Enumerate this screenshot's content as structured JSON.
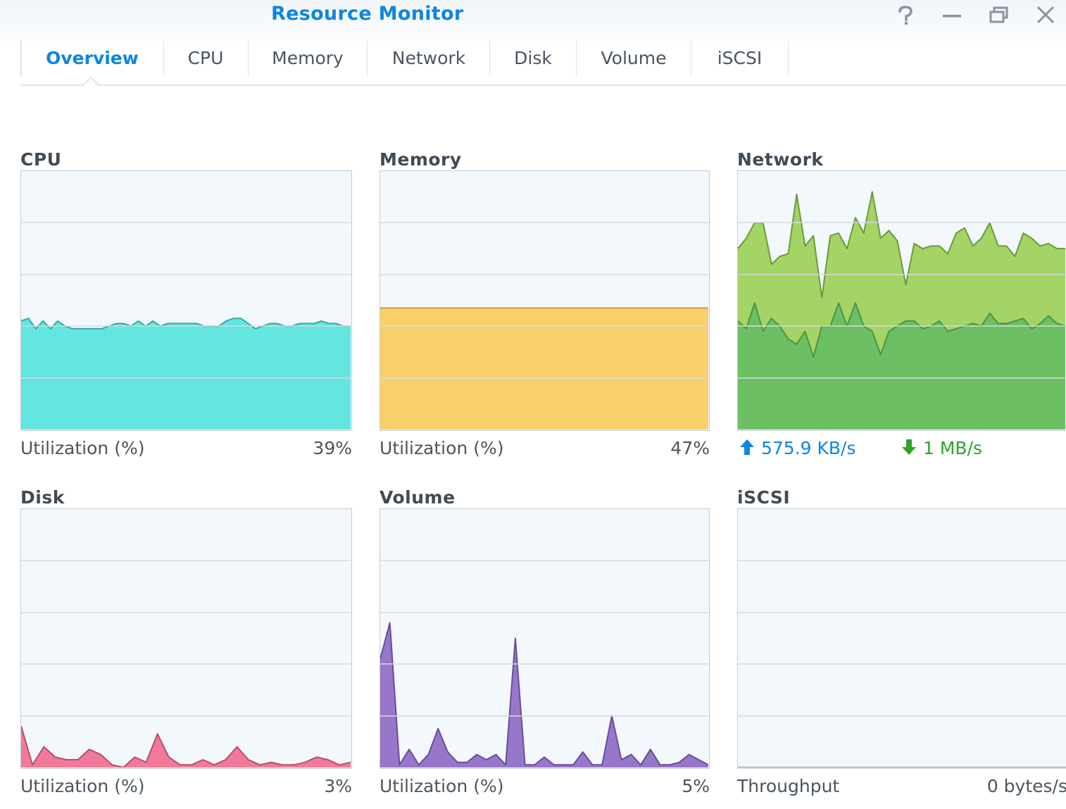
{
  "window": {
    "title": "Resource Monitor",
    "buttons": [
      "help-icon",
      "minimize-icon",
      "restore-icon",
      "close-icon"
    ]
  },
  "tabs": [
    {
      "label": "Overview",
      "active": true
    },
    {
      "label": "CPU",
      "active": false
    },
    {
      "label": "Memory",
      "active": false
    },
    {
      "label": "Network",
      "active": false
    },
    {
      "label": "Disk",
      "active": false
    },
    {
      "label": "Volume",
      "active": false
    },
    {
      "label": "iSCSI",
      "active": false
    }
  ],
  "panels": {
    "cpu": {
      "title": "CPU",
      "label": "Utilization (%)",
      "value": "39%"
    },
    "memory": {
      "title": "Memory",
      "label": "Utilization (%)",
      "value": "47%"
    },
    "network": {
      "title": "Network",
      "upload": "575.9 KB/s",
      "download": "1 MB/s"
    },
    "disk": {
      "title": "Disk",
      "label": "Utilization (%)",
      "value": "3%"
    },
    "volume": {
      "title": "Volume",
      "label": "Utilization (%)",
      "value": "5%"
    },
    "iscsi": {
      "title": "iSCSI",
      "label": "Throughput",
      "value": "0 bytes/s"
    }
  },
  "colors": {
    "accent": "#0d86e0",
    "cpu_fill": "#63e6e0",
    "cpu_line": "#3aa8a8",
    "memory_fill": "#f8d06a",
    "memory_line": "#c9a040",
    "net_upper_fill": "#a4d466",
    "net_upper_line": "#6a9a3a",
    "net_lower_fill": "#6cbf63",
    "net_lower_line": "#4a9545",
    "disk_fill": "#f17a9a",
    "disk_line": "#b84e6a",
    "volume_fill": "#9677c9",
    "volume_line": "#6a4d9a",
    "download": "#2ea42d"
  },
  "chart_data": [
    {
      "type": "area",
      "id": "cpu",
      "ylim": [
        0,
        100
      ],
      "values": [
        42,
        43,
        39,
        42,
        39,
        42,
        40,
        39,
        39,
        39,
        39,
        39,
        40,
        41,
        41,
        40,
        42,
        40,
        42,
        40,
        41,
        41,
        41,
        41,
        41,
        40,
        40,
        40,
        42,
        43,
        43,
        41,
        39,
        40,
        41,
        41,
        40,
        40,
        41,
        41,
        41,
        42,
        41,
        41,
        40,
        40
      ]
    },
    {
      "type": "area",
      "id": "memory",
      "ylim": [
        0,
        100
      ],
      "values": [
        47,
        47
      ]
    },
    {
      "type": "area",
      "id": "network",
      "ylim": [
        0,
        100
      ],
      "series": [
        {
          "values": [
            70,
            74,
            80,
            80,
            64,
            67,
            68,
            91,
            71,
            75,
            51,
            75,
            76,
            70,
            82,
            76,
            92,
            74,
            77,
            73,
            56,
            72,
            70,
            71,
            71,
            68,
            76,
            78,
            71,
            74,
            80,
            71,
            71,
            67,
            76,
            74,
            71,
            72,
            70,
            70
          ]
        },
        {
          "values": [
            42,
            39,
            49,
            38,
            43,
            40,
            35,
            33,
            38,
            28,
            40,
            40,
            49,
            40,
            49,
            40,
            38,
            29,
            38,
            40,
            42,
            42,
            39,
            40,
            42,
            38,
            39,
            40,
            41,
            40,
            45,
            41,
            41,
            42,
            43,
            39,
            41,
            44,
            41,
            40
          ]
        }
      ]
    },
    {
      "type": "area",
      "id": "disk",
      "ylim": [
        0,
        100
      ],
      "values": [
        16,
        1,
        8,
        4,
        3,
        3,
        7,
        5,
        1,
        0,
        4,
        2,
        13,
        4,
        1,
        1,
        3,
        1,
        3,
        8,
        3,
        1,
        2,
        1,
        1,
        2,
        4,
        3,
        1,
        2
      ]
    },
    {
      "type": "area",
      "id": "volume",
      "ylim": [
        0,
        100
      ],
      "values": [
        42,
        56,
        1,
        7,
        1,
        5,
        15,
        6,
        2,
        2,
        5,
        3,
        5,
        1,
        50,
        1,
        1,
        4,
        1,
        1,
        1,
        6,
        1,
        1,
        20,
        3,
        5,
        1,
        7,
        1,
        1,
        2,
        5,
        3,
        1
      ]
    },
    {
      "type": "area",
      "id": "iscsi",
      "ylim": [
        0,
        100
      ],
      "values": [
        0,
        0
      ]
    }
  ]
}
